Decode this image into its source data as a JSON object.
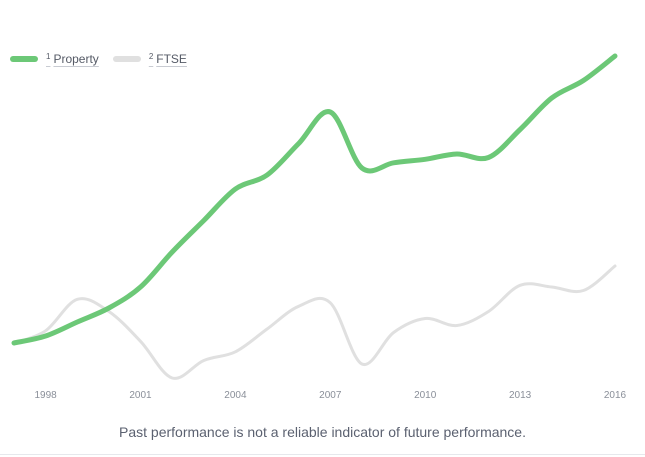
{
  "chart_data": {
    "type": "line",
    "x": [
      1997,
      1998,
      1999,
      2000,
      2001,
      2002,
      2003,
      2004,
      2005,
      2006,
      2007,
      2008,
      2009,
      2010,
      2011,
      2012,
      2013,
      2014,
      2015,
      2016
    ],
    "xticks": [
      "1998",
      "2001",
      "2004",
      "2007",
      "2010",
      "2013",
      "2016"
    ],
    "series": [
      {
        "name": "Property",
        "superscript": "1",
        "color": "#6cc877",
        "values": [
          20,
          24,
          32,
          40,
          52,
          72,
          90,
          108,
          116,
          134,
          152,
          120,
          123,
          125,
          128,
          126,
          142,
          160,
          170,
          184
        ]
      },
      {
        "name": "FTSE",
        "superscript": "2",
        "color": "#e0e0e0",
        "values": [
          20,
          27,
          45,
          38,
          21,
          0,
          10,
          15,
          28,
          41,
          43,
          8,
          26,
          34,
          30,
          38,
          53,
          52,
          50,
          64
        ]
      }
    ],
    "legend_position": "top-left",
    "grid": false
  },
  "note": "Past performance is not a reliable indicator of future performance."
}
